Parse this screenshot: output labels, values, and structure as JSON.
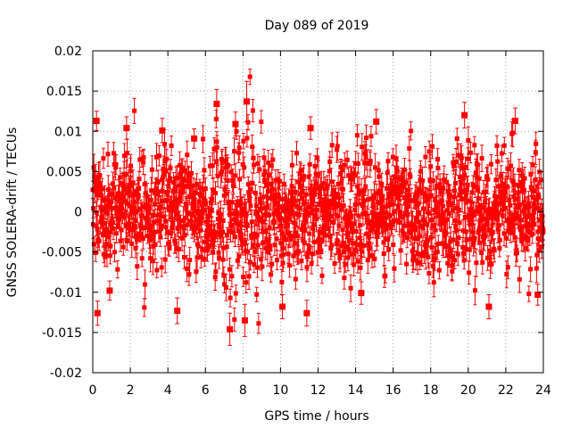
{
  "chart_data": {
    "type": "scatter",
    "title": "Day 089 of 2019",
    "xlabel": "GPS time / hours",
    "ylabel": "GNSS SOLERA-drift / TECUs",
    "xlim": [
      0,
      24
    ],
    "ylim": [
      -0.02,
      0.02
    ],
    "xticks": [
      0,
      2,
      4,
      6,
      8,
      10,
      12,
      14,
      16,
      18,
      20,
      22,
      24
    ],
    "xtick_labels": [
      "0",
      "2",
      "4",
      "6",
      "8",
      "10",
      "12",
      "14",
      "16",
      "18",
      "20",
      "22",
      "24"
    ],
    "yticks": [
      -0.02,
      -0.015,
      -0.01,
      -0.005,
      0,
      0.005,
      0.01,
      0.015,
      0.02
    ],
    "ytick_labels": [
      "-0.02",
      "-0.015",
      "-0.01",
      "-0.005",
      "0",
      "0.005",
      "0.01",
      "0.015",
      "0.02"
    ],
    "grid": true,
    "series": [
      {
        "name": "SOLERA-drift",
        "color": "#ff0000",
        "marker": "square",
        "error_bars": true,
        "note": "dense noise cloud around zero (approx. 0.004 TECU scatter), wider near 7-9 h",
        "highlights": [
          {
            "x": 0.2,
            "y": 0.0113,
            "err": 0.0012
          },
          {
            "x": 0.25,
            "y": -0.0126,
            "err": 0.0015
          },
          {
            "x": 0.9,
            "y": -0.0098,
            "err": 0.0012
          },
          {
            "x": 1.8,
            "y": 0.0104,
            "err": 0.0014
          },
          {
            "x": 3.7,
            "y": 0.0101,
            "err": 0.0015
          },
          {
            "x": 4.5,
            "y": -0.0123,
            "err": 0.0016
          },
          {
            "x": 5.4,
            "y": 0.0091,
            "err": 0.0012
          },
          {
            "x": 6.6,
            "y": 0.0134,
            "err": 0.0018
          },
          {
            "x": 7.3,
            "y": -0.0146,
            "err": 0.002
          },
          {
            "x": 7.6,
            "y": 0.0109,
            "err": 0.0015
          },
          {
            "x": 8.1,
            "y": -0.0135,
            "err": 0.002
          },
          {
            "x": 8.2,
            "y": 0.0137,
            "err": 0.0025
          },
          {
            "x": 10.1,
            "y": -0.0118,
            "err": 0.0015
          },
          {
            "x": 11.4,
            "y": -0.0126,
            "err": 0.0016
          },
          {
            "x": 11.6,
            "y": 0.0104,
            "err": 0.0014
          },
          {
            "x": 14.3,
            "y": -0.0101,
            "err": 0.0014
          },
          {
            "x": 15.1,
            "y": 0.0112,
            "err": 0.0015
          },
          {
            "x": 19.8,
            "y": 0.012,
            "err": 0.0016
          },
          {
            "x": 21.1,
            "y": -0.0118,
            "err": 0.0015
          },
          {
            "x": 22.5,
            "y": 0.0113,
            "err": 0.0016
          },
          {
            "x": 23.7,
            "y": -0.0103,
            "err": 0.0013
          }
        ]
      }
    ]
  }
}
